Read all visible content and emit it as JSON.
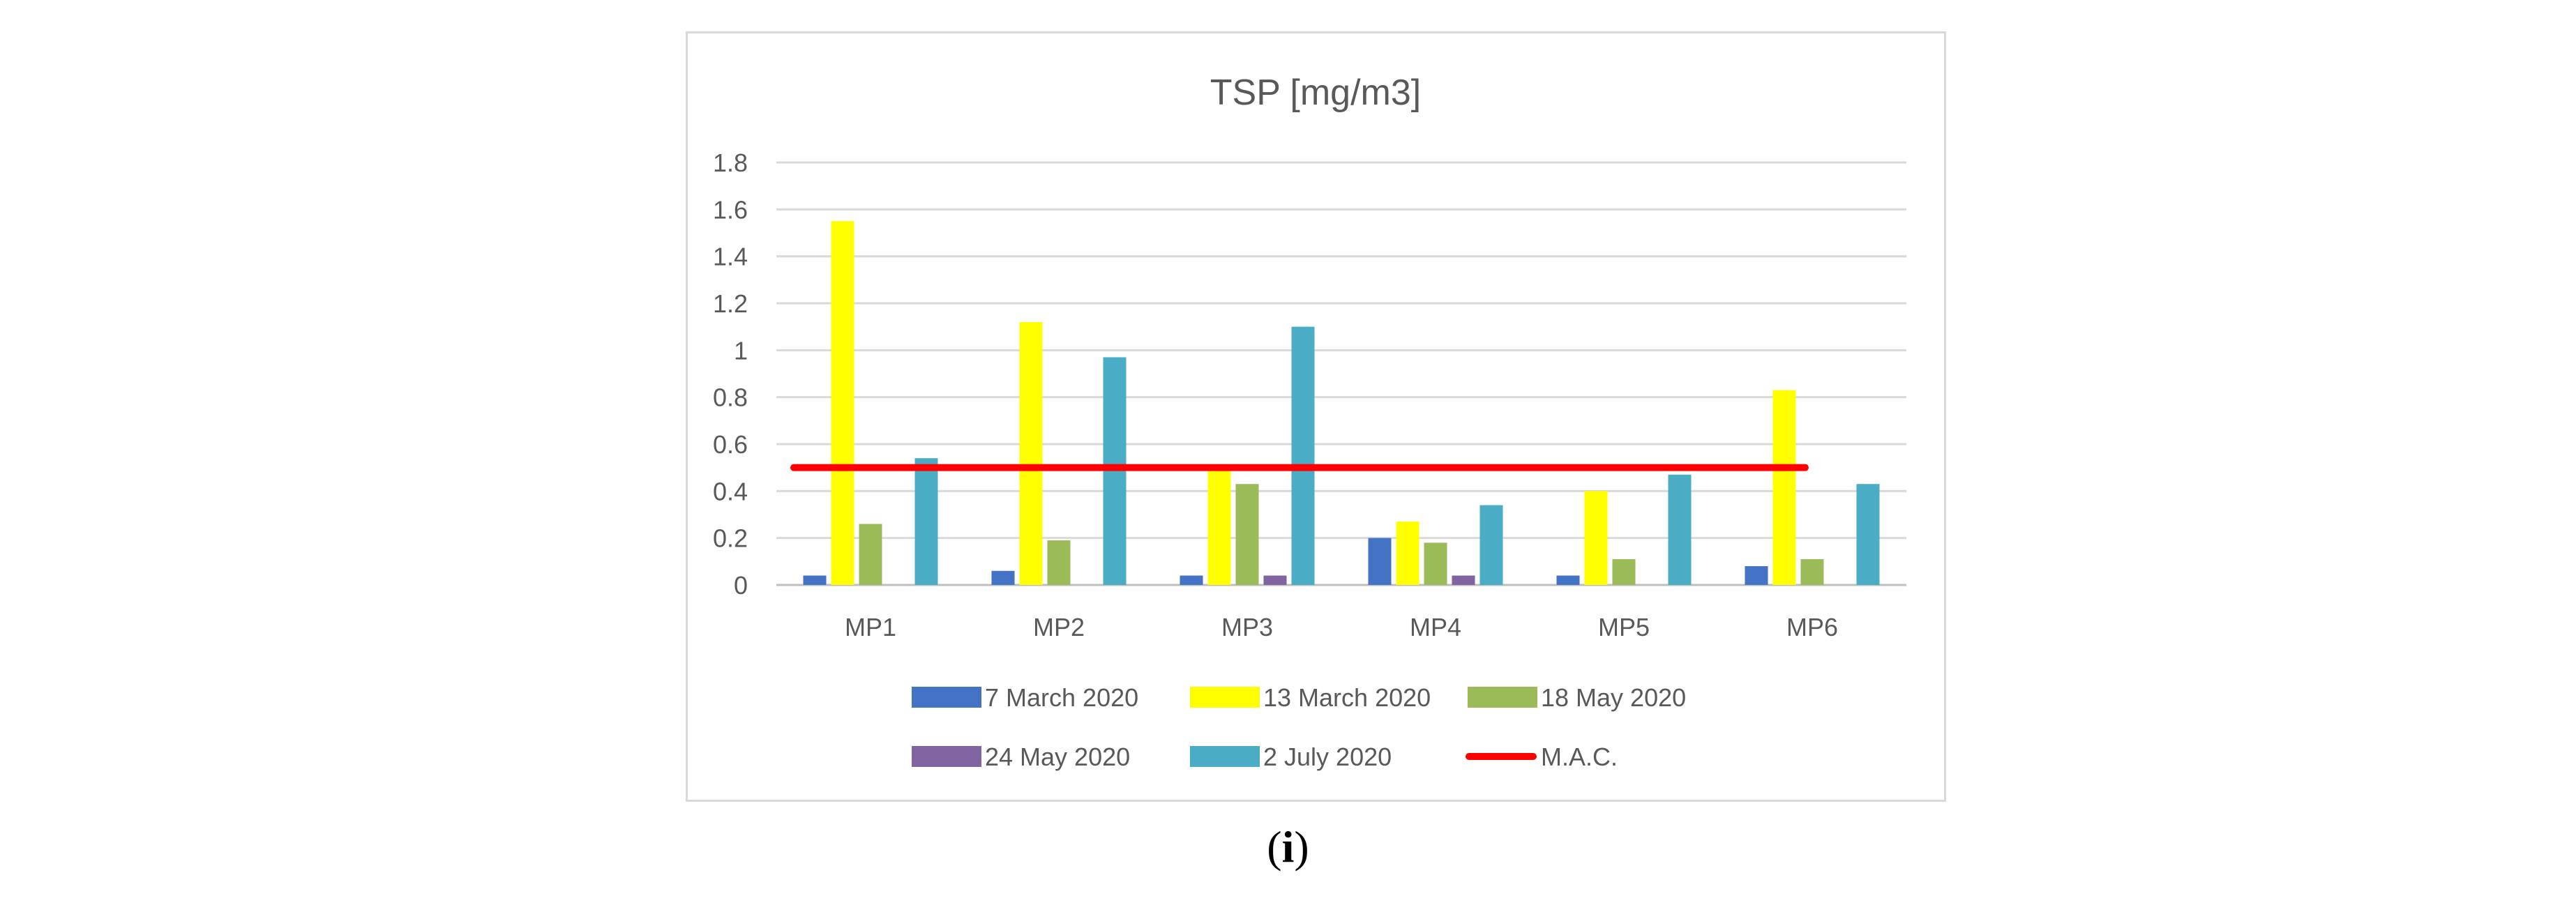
{
  "panel_label": {
    "open": "(",
    "letter": "i",
    "close": ")"
  },
  "chart_data": {
    "type": "bar",
    "title": "TSP [mg/m3]",
    "xlabel": "",
    "ylabel": "",
    "ylim": [
      0,
      1.8
    ],
    "yticks": [
      0,
      0.2,
      0.4,
      0.6,
      0.8,
      1,
      1.2,
      1.4,
      1.6,
      1.8
    ],
    "ytick_labels": [
      "0",
      "0.2",
      "0.4",
      "0.6",
      "0.8",
      "1",
      "1.2",
      "1.4",
      "1.6",
      "1.8"
    ],
    "grid": true,
    "legend_position": "bottom",
    "categories": [
      "MP1",
      "MP2",
      "MP3",
      "MP4",
      "MP5",
      "MP6"
    ],
    "series": [
      {
        "name": "7 March 2020",
        "color": "#4472c4",
        "values": [
          0.04,
          0.06,
          0.04,
          0.2,
          0.04,
          0.08
        ]
      },
      {
        "name": "13 March 2020",
        "color": "#ffff00",
        "values": [
          1.55,
          1.12,
          0.5,
          0.27,
          0.4,
          0.83
        ]
      },
      {
        "name": "18 May 2020",
        "color": "#9bbb59",
        "values": [
          0.26,
          0.19,
          0.43,
          0.18,
          0.11,
          0.11
        ]
      },
      {
        "name": "24 May 2020",
        "color": "#8064a2",
        "values": [
          0,
          0,
          0.04,
          0.04,
          0,
          0
        ]
      },
      {
        "name": "2 July 2020",
        "color": "#4bacc6",
        "values": [
          0.54,
          0.97,
          1.1,
          0.34,
          0.47,
          0.43
        ]
      }
    ],
    "reference_line": {
      "name": "M.A.C.",
      "value": 0.5,
      "color": "#ff0000"
    }
  }
}
